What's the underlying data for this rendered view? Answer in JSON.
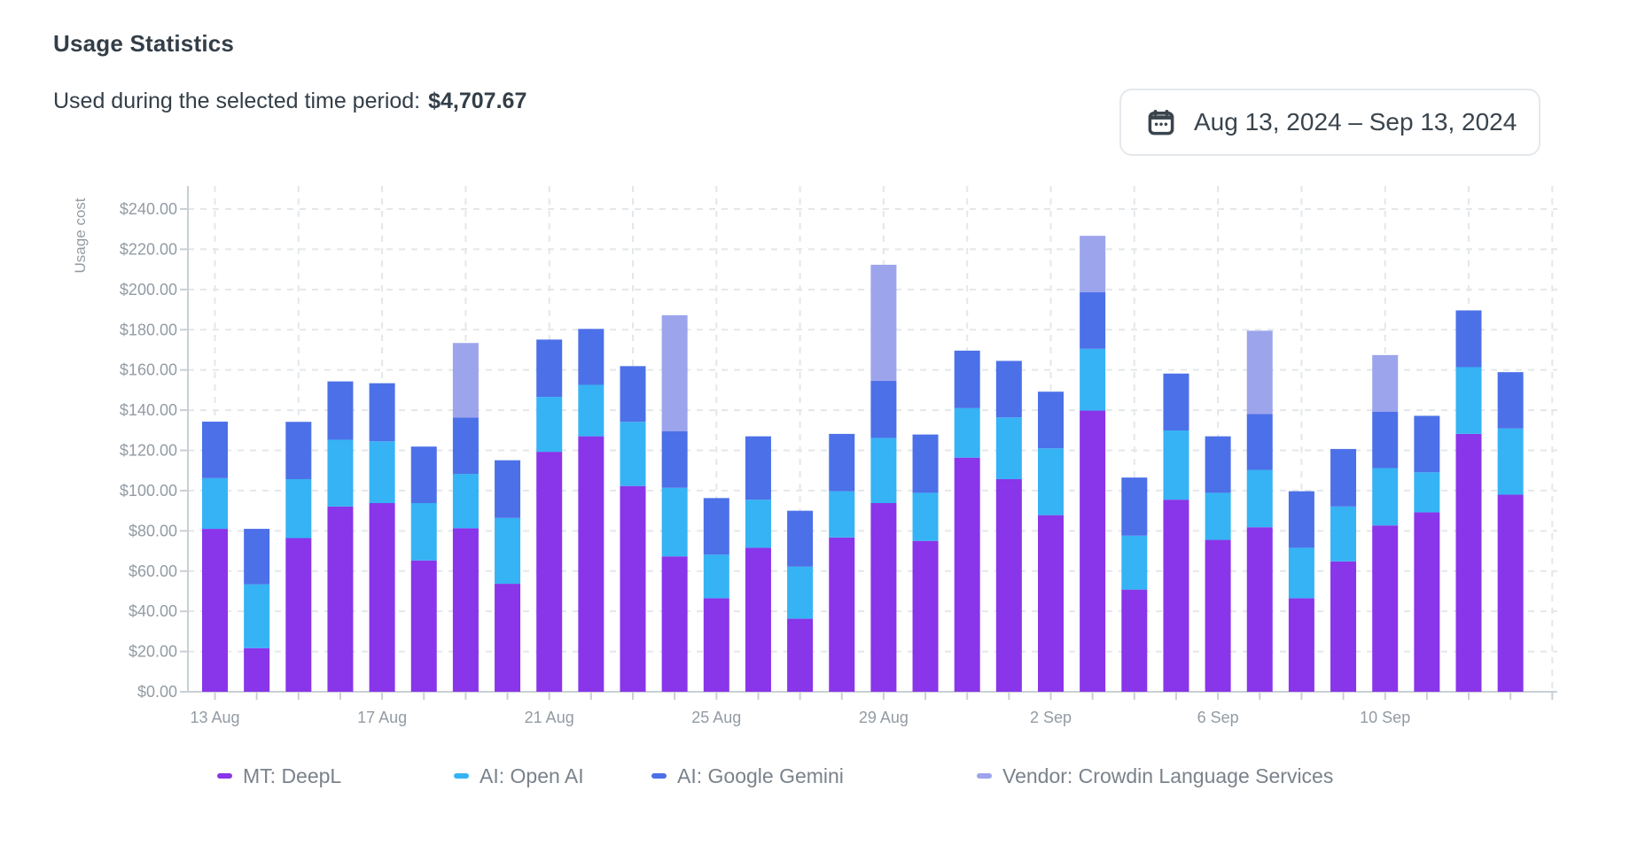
{
  "page": {
    "title": "Usage Statistics"
  },
  "summary": {
    "label": "Used during the selected time period:",
    "value": "$4,707.67"
  },
  "date_range": {
    "label": "Aug 13, 2024 – Sep 13, 2024",
    "icon": "calendar-icon"
  },
  "chart_data": {
    "type": "bar",
    "stacked": true,
    "title": "Usage Statistics",
    "xlabel": "",
    "ylabel": "Usage cost",
    "ylim": [
      0,
      250
    ],
    "y_tick_step": 20,
    "y_tick_labels": [
      "$0.00",
      "$20.00",
      "$40.00",
      "$60.00",
      "$80.00",
      "$100.00",
      "$120.00",
      "$140.00",
      "$160.00",
      "$180.00",
      "$200.00",
      "$220.00",
      "$240.00"
    ],
    "grid": {
      "horizontal": "dashed",
      "vertical": "dashed-every-2-bars"
    },
    "legend_position": "bottom",
    "x_tick_labels_visible": [
      "13 Aug",
      "17 Aug",
      "21 Aug",
      "25 Aug",
      "29 Aug",
      "2 Sep",
      "6 Sep",
      "10 Sep"
    ],
    "x_label_every": 4,
    "categories": [
      "13 Aug",
      "14 Aug",
      "15 Aug",
      "16 Aug",
      "17 Aug",
      "18 Aug",
      "19 Aug",
      "20 Aug",
      "21 Aug",
      "22 Aug",
      "23 Aug",
      "24 Aug",
      "25 Aug",
      "26 Aug",
      "27 Aug",
      "28 Aug",
      "29 Aug",
      "30 Aug",
      "31 Aug",
      "1 Sep",
      "2 Sep",
      "3 Sep",
      "4 Sep",
      "5 Sep",
      "6 Sep",
      "7 Sep",
      "8 Sep",
      "9 Sep",
      "10 Sep",
      "11 Sep",
      "12 Sep",
      "13 Sep"
    ],
    "series": [
      {
        "name": "MT: DeepL",
        "color": "#8935E9",
        "values": [
          81.0,
          21.7,
          76.4,
          92.1,
          93.8,
          65.3,
          81.3,
          53.7,
          119.3,
          127.0,
          102.3,
          67.3,
          46.5,
          71.6,
          36.3,
          76.7,
          93.8,
          75.0,
          116.4,
          105.7,
          87.8,
          139.8,
          50.8,
          95.5,
          75.5,
          81.8,
          46.5,
          64.8,
          82.7,
          89.2,
          128.2,
          98.0
        ]
      },
      {
        "name": "AI: Open AI",
        "color": "#35B3F4",
        "values": [
          25.2,
          31.7,
          29.3,
          33.2,
          30.7,
          28.5,
          27.0,
          32.7,
          27.3,
          25.6,
          31.9,
          34.1,
          21.7,
          23.9,
          25.9,
          23.0,
          32.4,
          23.9,
          24.6,
          30.7,
          33.2,
          30.7,
          26.8,
          34.4,
          23.4,
          28.5,
          25.1,
          27.3,
          28.5,
          19.9,
          33.2,
          32.9
        ]
      },
      {
        "name": "AI: Google Gemini",
        "color": "#4C70E8",
        "values": [
          28.1,
          27.6,
          28.5,
          29.0,
          28.9,
          28.1,
          28.1,
          28.7,
          28.5,
          27.8,
          27.7,
          28.2,
          28.1,
          31.5,
          27.8,
          28.5,
          28.4,
          29.0,
          28.6,
          28.1,
          28.2,
          28.1,
          28.9,
          28.3,
          28.1,
          27.8,
          28.1,
          28.6,
          28.1,
          28.1,
          28.2,
          28.0
        ]
      },
      {
        "name": "Vendor: Crowdin Language Services",
        "color": "#9CA4EC",
        "values": [
          0,
          0,
          0,
          0,
          0,
          0,
          37.0,
          0,
          0,
          0,
          0,
          57.6,
          0,
          0,
          0,
          0,
          57.7,
          0,
          0,
          0,
          0,
          28.1,
          0,
          0,
          0,
          41.4,
          0,
          0,
          28.1,
          0,
          0,
          0
        ]
      }
    ]
  },
  "colors": {
    "text_dark": "#333E48",
    "axis_label": "#939BA3",
    "legend_text": "#7A828B",
    "axis_line": "#C9CFD5",
    "gridline": "#E4E7EA"
  }
}
